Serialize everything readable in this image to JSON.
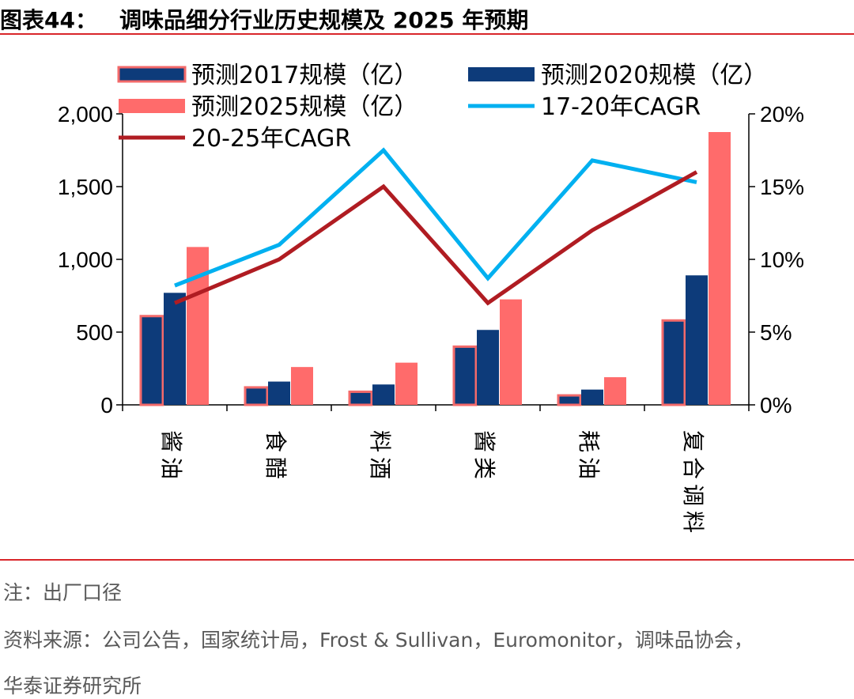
{
  "header": {
    "figure_no": "图表44：",
    "title": "调味品细分行业历史规模及 2025 年预期"
  },
  "chart_data": {
    "type": "bar",
    "categories": [
      "酱油",
      "食醋",
      "料酒",
      "酱类",
      "耗油",
      "复合调料"
    ],
    "series": [
      {
        "name": "预测2017规模（亿）",
        "kind": "bar",
        "axis": "left",
        "color": "#0d3b7a",
        "border": "#f36a6a",
        "values": [
          610,
          120,
          90,
          400,
          65,
          580
        ]
      },
      {
        "name": "预测2020规模（亿）",
        "kind": "bar",
        "axis": "left",
        "color": "#0d3b7a",
        "values": [
          770,
          160,
          140,
          515,
          105,
          890
        ]
      },
      {
        "name": "预测2025规模（亿）",
        "kind": "bar",
        "axis": "left",
        "color": "#ff6b6b",
        "values": [
          1085,
          260,
          290,
          725,
          190,
          1875
        ]
      },
      {
        "name": "17-20年CAGR",
        "kind": "line",
        "axis": "right",
        "color": "#00b0f0",
        "values": [
          8.2,
          11.0,
          17.5,
          8.7,
          16.8,
          15.3
        ]
      },
      {
        "name": "20-25年CAGR",
        "kind": "line",
        "axis": "right",
        "color": "#b01c22",
        "values": [
          7.0,
          10.0,
          15.0,
          7.0,
          12.0,
          16.0
        ]
      }
    ],
    "ylim_left": [
      0,
      2000
    ],
    "ylim_right": [
      0,
      20
    ],
    "left_ticks": [
      "0",
      "500",
      "1,000",
      "1,500",
      "2,000"
    ],
    "right_ticks": [
      "0%",
      "5%",
      "10%",
      "15%",
      "20%"
    ],
    "grid": false,
    "legend_position": "top"
  },
  "footer": {
    "note": "注：出厂口径",
    "source_line1": "资料来源：公司公告，国家统计局，Frost & Sullivan，Euromonitor，调味品协会，",
    "source_line2": "华泰证券研究所"
  }
}
